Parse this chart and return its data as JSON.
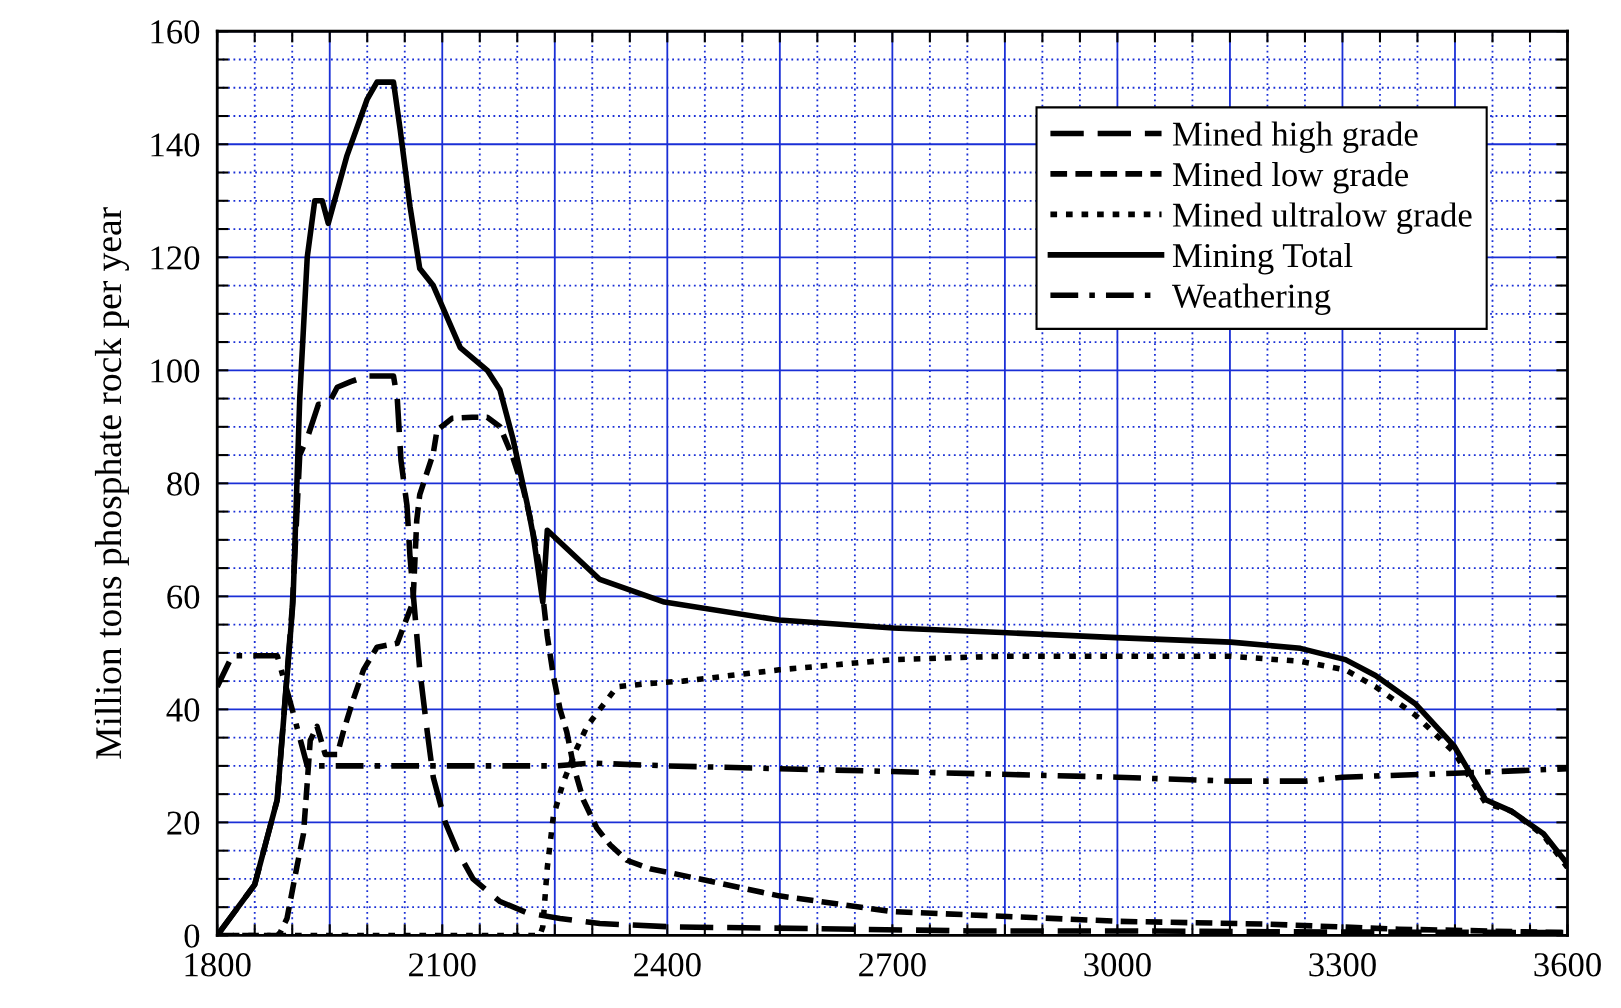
{
  "chart_data": {
    "type": "line",
    "ylabel": "Million tons phosphate rock per year",
    "xlim": [
      1800,
      3600
    ],
    "xticks": [
      1800,
      {
        "value": 1850,
        "label": null
      },
      {
        "value": 1900,
        "label": null
      },
      {
        "value": 1950,
        "label": null
      },
      {
        "value": 2000,
        "label": null
      },
      {
        "value": 2050,
        "label": null
      },
      2100,
      {
        "value": 2150,
        "label": null
      },
      {
        "value": 2200,
        "label": null
      },
      {
        "value": 2250,
        "label": null
      },
      {
        "value": 2300,
        "label": null
      },
      {
        "value": 2350,
        "label": null
      },
      2400,
      {
        "value": 2450,
        "label": null
      },
      {
        "value": 2500,
        "label": null
      },
      {
        "value": 2550,
        "label": null
      },
      {
        "value": 2600,
        "label": null
      },
      {
        "value": 2650,
        "label": null
      },
      2700,
      {
        "value": 2750,
        "label": null
      },
      {
        "value": 2800,
        "label": null
      },
      {
        "value": 2850,
        "label": null
      },
      {
        "value": 2900,
        "label": null
      },
      {
        "value": 2950,
        "label": null
      },
      3000,
      {
        "value": 3050,
        "label": null
      },
      {
        "value": 3100,
        "label": null
      },
      {
        "value": 3150,
        "label": null
      },
      {
        "value": 3200,
        "label": null
      },
      {
        "value": 3250,
        "label": null
      },
      3300,
      {
        "value": 3350,
        "label": null
      },
      {
        "value": 3400,
        "label": null
      },
      {
        "value": 3450,
        "label": null
      },
      {
        "value": 3500,
        "label": null
      },
      {
        "value": 3550,
        "label": null
      },
      3600
    ],
    "ylim": [
      0,
      160
    ],
    "yticks": [
      0,
      {
        "value": 5,
        "label": null
      },
      {
        "value": 10,
        "label": null
      },
      {
        "value": 15,
        "label": null
      },
      20,
      {
        "value": 25,
        "label": null
      },
      {
        "value": 30,
        "label": null
      },
      {
        "value": 35,
        "label": null
      },
      40,
      {
        "value": 45,
        "label": null
      },
      {
        "value": 50,
        "label": null
      },
      {
        "value": 55,
        "label": null
      },
      60,
      {
        "value": 65,
        "label": null
      },
      {
        "value": 70,
        "label": null
      },
      {
        "value": 75,
        "label": null
      },
      80,
      {
        "value": 85,
        "label": null
      },
      {
        "value": 90,
        "label": null
      },
      {
        "value": 95,
        "label": null
      },
      100,
      {
        "value": 105,
        "label": null
      },
      {
        "value": 110,
        "label": null
      },
      {
        "value": 115,
        "label": null
      },
      120,
      {
        "value": 125,
        "label": null
      },
      {
        "value": 130,
        "label": null
      },
      {
        "value": 135,
        "label": null
      },
      140,
      {
        "value": 145,
        "label": null
      },
      {
        "value": 150,
        "label": null
      },
      {
        "value": 155,
        "label": null
      },
      160
    ],
    "grid": true,
    "legend": "top right",
    "marker": "none",
    "series": [
      {
        "name": "Mined high grade",
        "color": "#000000",
        "line_style": "long dashed",
        "x": [
          1800,
          1850,
          1880,
          1900,
          1910,
          1920,
          1935,
          1948,
          1960,
          1978,
          2000,
          2035,
          2040,
          2045,
          2053,
          2057,
          2070,
          2080,
          2088,
          2104,
          2120,
          2141,
          2177,
          2213,
          2257,
          2310,
          2407,
          2600,
          2800,
          3000,
          3300,
          3600
        ],
        "values": [
          0,
          9,
          24,
          58,
          85,
          88,
          94,
          94,
          97,
          98,
          99,
          99,
          95,
          84,
          76,
          67,
          47,
          36,
          28,
          20,
          15,
          10,
          6,
          4,
          3,
          2.1,
          1.5,
          1.2,
          0.8,
          0.8,
          0.6,
          0.5
        ]
      },
      {
        "name": "Mined low grade",
        "color": "#000000",
        "line_style": "dashed",
        "x": [
          1800,
          1880,
          1884,
          1893,
          1906,
          1915,
          1920,
          1924,
          1933,
          1944,
          1960,
          1968,
          1981,
          1995,
          2013,
          2040,
          2048,
          2061,
          2066,
          2070,
          2088,
          2093,
          2113,
          2140,
          2160,
          2177,
          2194,
          2208,
          2217,
          2230,
          2240,
          2248,
          2257,
          2266,
          2275,
          2288,
          2306,
          2324,
          2346,
          2377,
          2407,
          2549,
          2701,
          2846,
          3000,
          3200,
          3375,
          3600
        ],
        "values": [
          0,
          0,
          0.5,
          3,
          12,
          18,
          27,
          34.5,
          37,
          32,
          32,
          36,
          41.6,
          47,
          51,
          51.7,
          54.5,
          59,
          73.5,
          78,
          85.3,
          89.4,
          91.5,
          91.7,
          91.7,
          90,
          84.6,
          79,
          74,
          65,
          53,
          46,
          40,
          36,
          30,
          24,
          19,
          16,
          13.3,
          11.8,
          11,
          7,
          4.2,
          3.4,
          2.5,
          2,
          1.1,
          0.5
        ]
      },
      {
        "name": "Mined ultralow grade",
        "color": "#000000",
        "line_style": "dotted",
        "x": [
          1800,
          2230,
          2234,
          2240,
          2248,
          2261,
          2279,
          2293,
          2310,
          2333,
          2377,
          2421,
          2549,
          2701,
          2846,
          3151,
          3244,
          3304,
          3344,
          3397,
          3449,
          3491,
          3525,
          3568,
          3600
        ],
        "values": [
          0,
          0,
          1.5,
          12,
          21,
          27,
          33,
          37,
          40,
          44,
          44.6,
          45,
          47,
          48.8,
          49.4,
          49.4,
          48.5,
          47,
          44,
          39,
          32.4,
          23.4,
          22,
          17.7,
          12
        ]
      },
      {
        "name": "Mining Total",
        "color": "#000000",
        "line_style": "solid",
        "x": [
          1800,
          1850,
          1880,
          1901,
          1910,
          1920,
          1930,
          1940,
          1948,
          1973,
          2000,
          2013,
          2035,
          2044,
          2057,
          2070,
          2088,
          2124,
          2160,
          2177,
          2194,
          2213,
          2221,
          2234,
          2240,
          2310,
          2396,
          2549,
          2701,
          2846,
          2999,
          3151,
          3244,
          3304,
          3344,
          3397,
          3449,
          3491,
          3525,
          3568,
          3600
        ],
        "values": [
          0,
          9,
          24,
          59,
          95,
          120,
          130,
          130,
          126,
          138,
          148,
          151,
          151,
          142.5,
          129,
          118,
          115,
          104,
          100,
          96.5,
          88,
          76.5,
          71,
          59,
          71.7,
          63,
          59,
          55.8,
          54.4,
          53.6,
          52.7,
          51.9,
          50.8,
          48.8,
          46,
          41,
          33.5,
          24,
          22,
          18,
          12.6
        ]
      },
      {
        "name": "Weathering",
        "color": "#000000",
        "line_style": "dash-dot",
        "x": [
          1800,
          1820,
          1880,
          1900,
          1920,
          1950,
          2100,
          2250,
          2300,
          2400,
          2700,
          3000,
          3150,
          3250,
          3300,
          3450,
          3600
        ],
        "values": [
          44,
          49.5,
          49.5,
          40,
          30,
          30,
          30,
          30,
          30.5,
          30,
          29,
          28,
          27.3,
          27.3,
          28,
          28.7,
          29.5
        ]
      }
    ]
  }
}
